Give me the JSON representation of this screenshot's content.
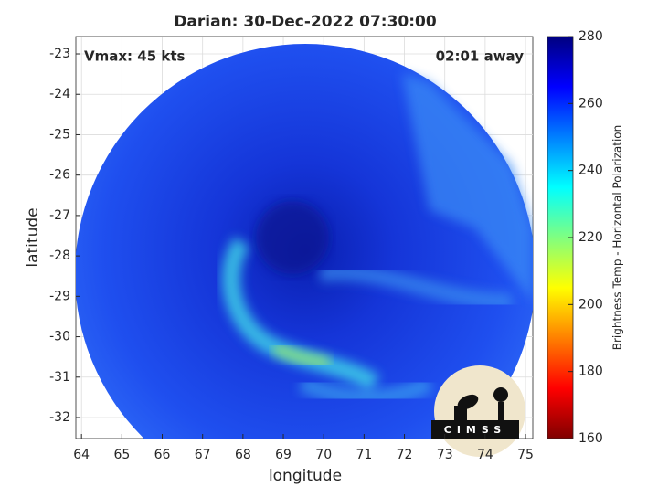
{
  "chart_data": {
    "type": "image",
    "title": "Darian: 30-Dec-2022 07:30:00",
    "annotations": [
      "Vmax: 45 kts",
      "02:01 away"
    ],
    "xlabel": "longitude",
    "ylabel": "latitude",
    "xlim": [
      63.86,
      75.18
    ],
    "xticks": [
      64,
      65,
      66,
      67,
      68,
      69,
      70,
      71,
      72,
      73,
      74,
      75
    ],
    "ylim": [
      -32.52,
      -22.57
    ],
    "yticks": [
      -32,
      -31,
      -30,
      -29,
      -28,
      -27,
      -26,
      -25,
      -24,
      -23
    ],
    "grid": true,
    "colorbar": {
      "label": "Brightness Temp - Horizontal Polarization",
      "clim": [
        160,
        280
      ],
      "ticks": [
        160,
        180,
        200,
        220,
        240,
        260,
        280
      ],
      "colormap": [
        "#800000",
        "#ff0000",
        "#ff8000",
        "#ffff00",
        "#80ff80",
        "#00ffff",
        "#0080ff",
        "#0000ff",
        "#000080"
      ]
    },
    "logo_text": "CIMSS"
  }
}
